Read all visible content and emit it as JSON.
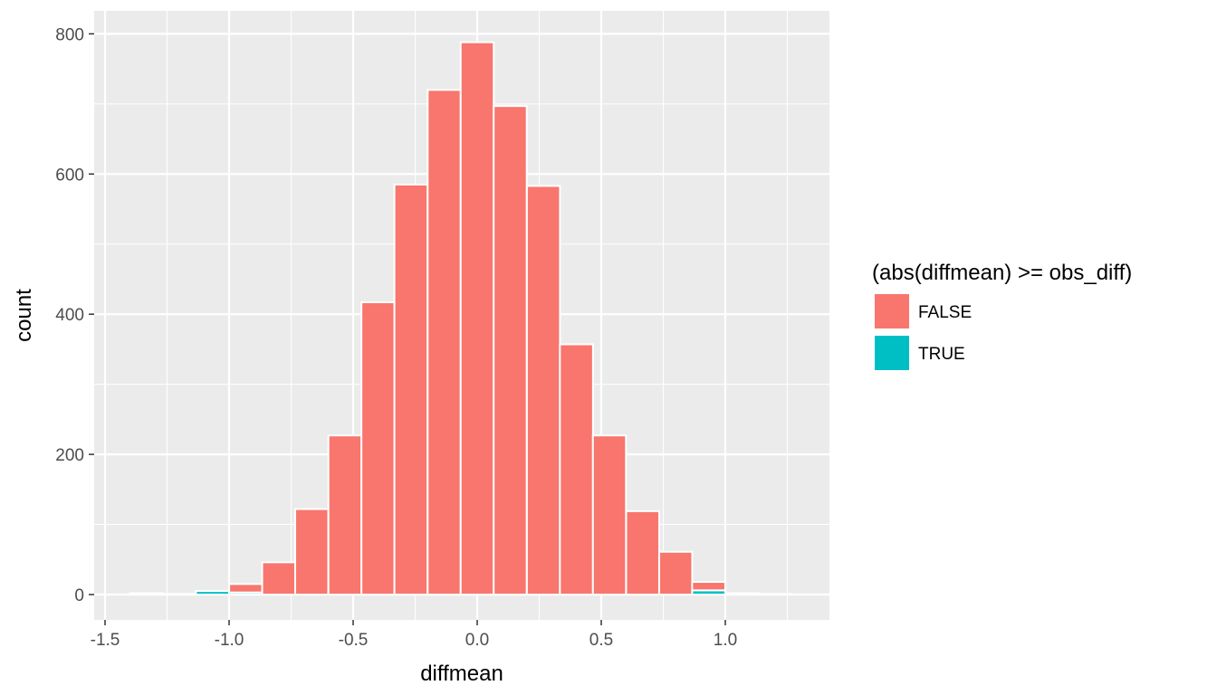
{
  "chart_data": {
    "type": "bar",
    "subtype": "stacked-histogram",
    "xlabel": "diffmean",
    "ylabel": "count",
    "xlim": [
      -1.5,
      1.35
    ],
    "ylim": [
      0,
      820
    ],
    "x_ticks": [
      "-1.5",
      "-1.0",
      "-0.5",
      "0.0",
      "0.5",
      "1.0"
    ],
    "x_tick_values": [
      -1.5,
      -1.0,
      -0.5,
      0.0,
      0.5,
      1.0
    ],
    "y_ticks": [
      "0",
      "200",
      "400",
      "600",
      "800"
    ],
    "y_tick_values": [
      0,
      200,
      400,
      600,
      800
    ],
    "bin_width": 0.1333,
    "bin_centers": [
      -1.333,
      -1.2,
      -1.067,
      -0.933,
      -0.8,
      -0.667,
      -0.533,
      -0.4,
      -0.267,
      -0.133,
      0.0,
      0.133,
      0.267,
      0.4,
      0.533,
      0.667,
      0.8,
      0.933,
      1.067,
      1.2
    ],
    "legend_title": "(abs(diffmean) >= obs_diff)",
    "legend_position": "right",
    "grid": true,
    "series": [
      {
        "name": "FALSE",
        "color": "#F8766D",
        "values": [
          0,
          0,
          0,
          12,
          46,
          122,
          227,
          417,
          585,
          720,
          788,
          697,
          583,
          357,
          227,
          119,
          61,
          12,
          0,
          0
        ]
      },
      {
        "name": "TRUE",
        "color": "#00BFC4",
        "values": [
          2,
          1,
          5,
          3,
          0,
          0,
          0,
          0,
          0,
          0,
          0,
          0,
          0,
          0,
          0,
          0,
          0,
          6,
          2,
          1
        ]
      }
    ]
  }
}
